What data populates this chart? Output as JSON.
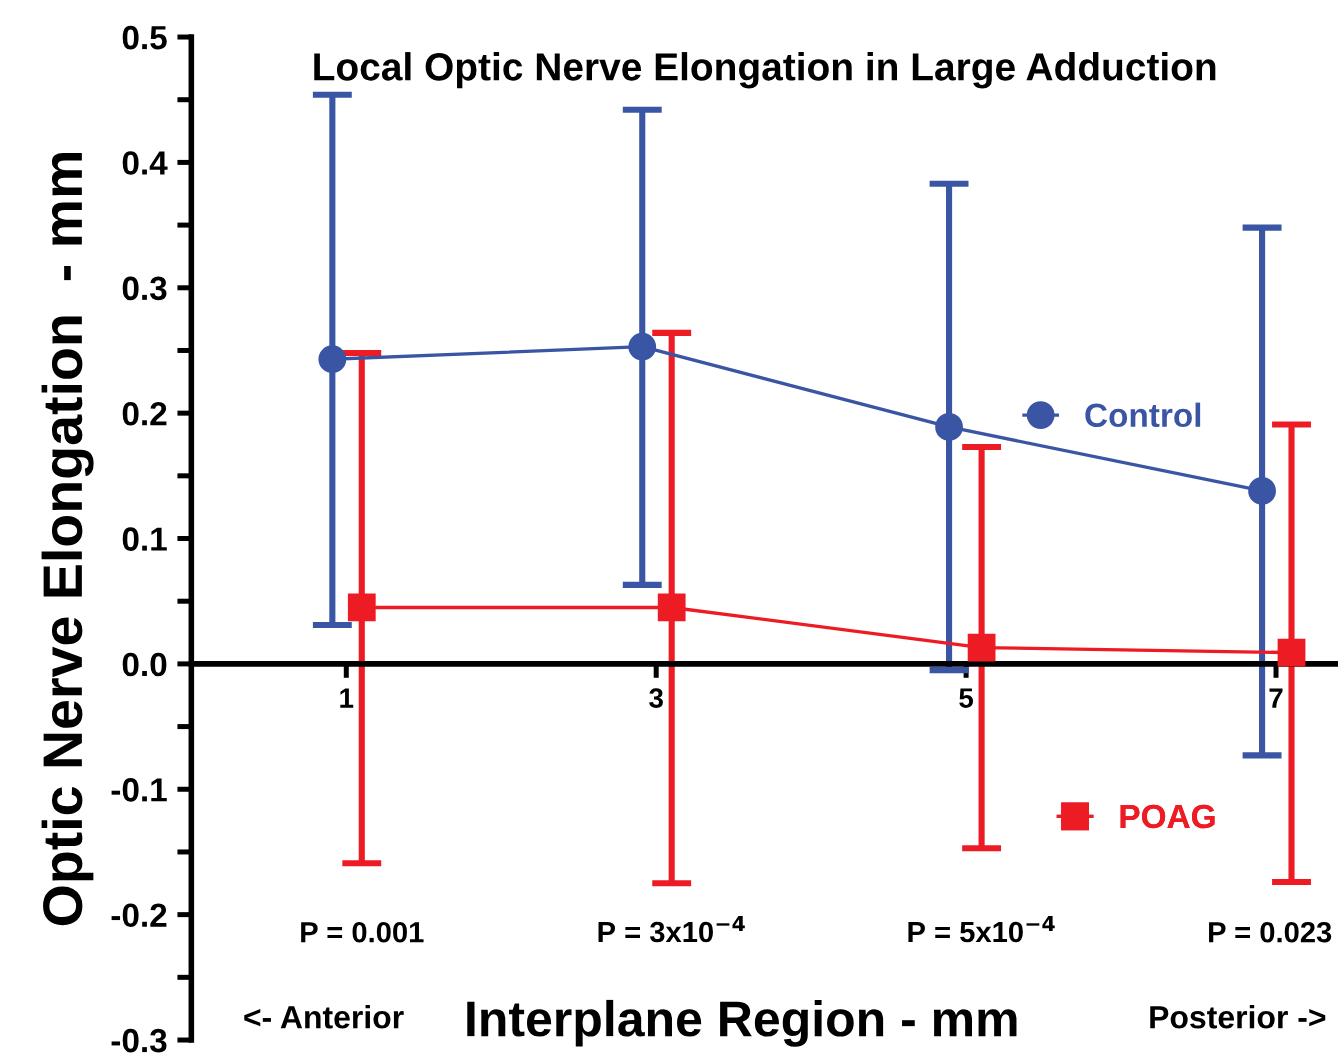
{
  "chart_data": {
    "type": "line",
    "title": "Local Optic Nerve Elongation in Large Adduction",
    "xlabel": "Interplane Region - mm",
    "ylabel": "Optic Nerve Elongation  - mm",
    "xlim": [
      0,
      7.4
    ],
    "xticks": [
      1,
      3,
      5,
      7
    ],
    "ylim": [
      -0.3,
      0.5
    ],
    "yticks": [
      {
        "value": -0.3,
        "label": "-0.3"
      },
      {
        "value": -0.25,
        "label": null
      },
      {
        "value": -0.2,
        "label": "-0.2"
      },
      {
        "value": -0.15,
        "label": null
      },
      {
        "value": -0.1,
        "label": "-0.1"
      },
      {
        "value": -0.05,
        "label": null
      },
      {
        "value": 0,
        "label": "0.0"
      },
      {
        "value": 0.05,
        "label": null
      },
      {
        "value": 0.1,
        "label": "0.1"
      },
      {
        "value": 0.15,
        "label": null
      },
      {
        "value": 0.2,
        "label": "0.2"
      },
      {
        "value": 0.25,
        "label": null
      },
      {
        "value": 0.3,
        "label": "0.3"
      },
      {
        "value": 0.35,
        "label": null
      },
      {
        "value": 0.4,
        "label": "0.4"
      },
      {
        "value": 0.45,
        "label": null
      },
      {
        "value": 0.5,
        "label": "0.5"
      }
    ],
    "series": [
      {
        "name": "Control",
        "color": "#3a55a4",
        "marker": "circle",
        "x": [
          0.91,
          2.91,
          4.89,
          6.91
        ],
        "values": [
          0.243,
          0.253,
          0.189,
          0.138
        ],
        "errors": [
          [
            0.031,
            0.454
          ],
          [
            0.063,
            0.442
          ],
          [
            -0.005,
            0.383
          ],
          [
            -0.073,
            0.348
          ]
        ]
      },
      {
        "name": "POAG",
        "color": "#ed1c24",
        "marker": "square",
        "x": [
          1.1,
          3.1,
          5.1,
          7.1
        ],
        "values": [
          0.045,
          0.045,
          0.013,
          0.009
        ],
        "errors": [
          [
            -0.159,
            0.248
          ],
          [
            -0.175,
            0.264
          ],
          [
            -0.147,
            0.173
          ],
          [
            -0.174,
            0.191
          ]
        ]
      }
    ],
    "legend": "right",
    "grid": false,
    "annotations": [
      "P = 0.001",
      "P = 3x10$^{−4}$",
      "P = 5x10$^{−4}$",
      "P = 0.023",
      "<- Anterior",
      "Posterior ->"
    ]
  }
}
